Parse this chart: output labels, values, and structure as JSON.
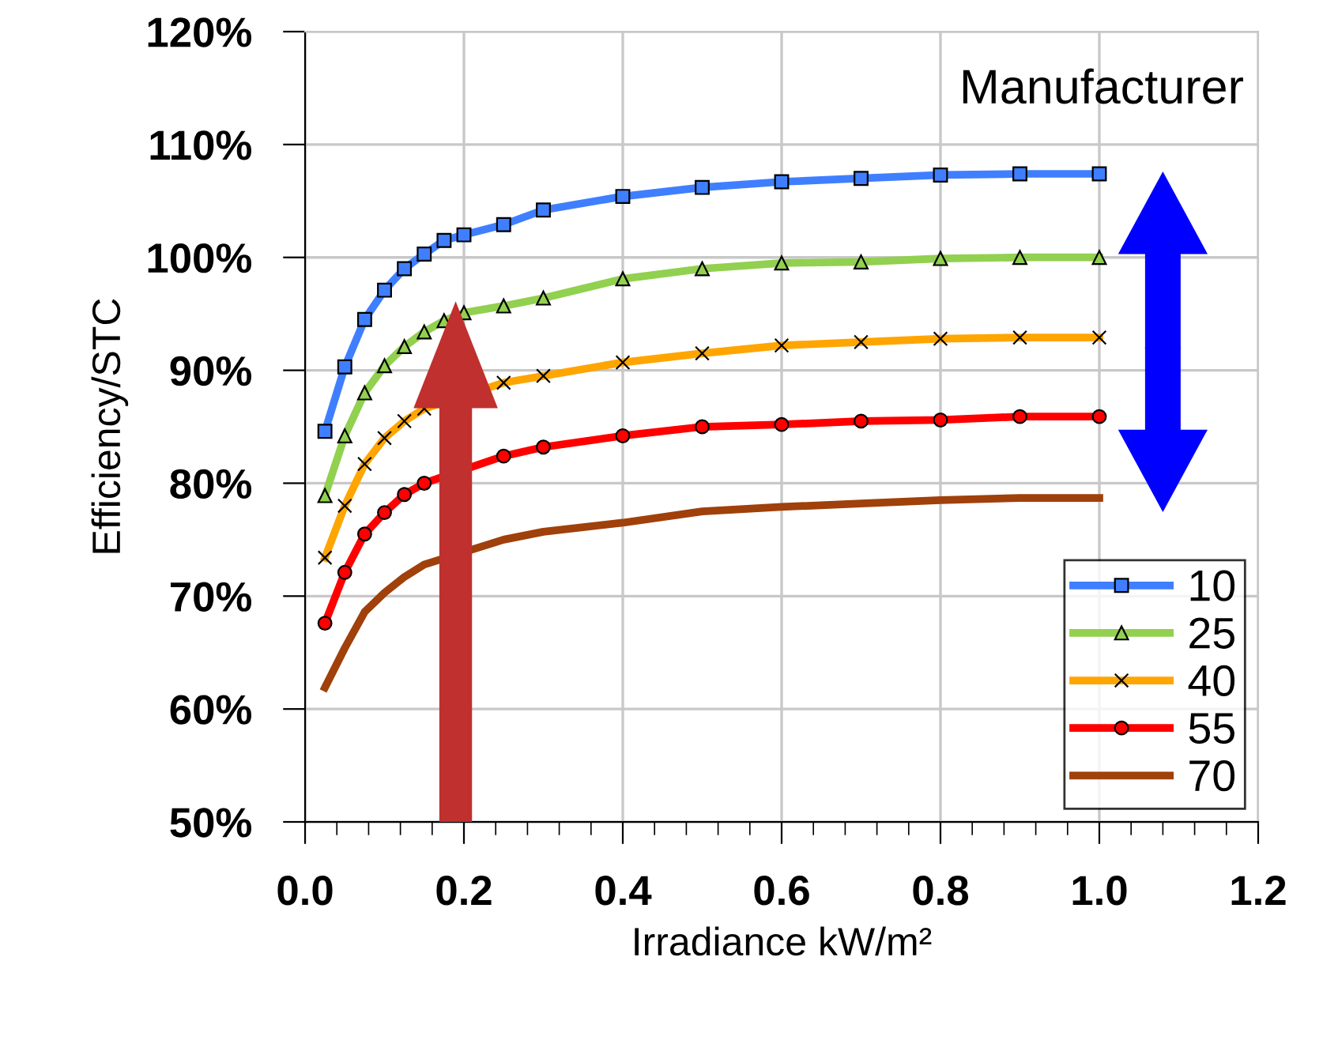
{
  "chart_data": {
    "type": "line",
    "xlabel": "Irradiance kW/m²",
    "ylabel": "Efficiency/STC",
    "x": [
      0.025,
      0.05,
      0.075,
      0.1,
      0.125,
      0.15,
      0.175,
      0.2,
      0.25,
      0.3,
      0.4,
      0.5,
      0.6,
      0.7,
      0.8,
      0.9,
      1.0
    ],
    "series": [
      {
        "name": "10",
        "color": "#3f7fff",
        "marker": "square",
        "values": [
          84.6,
          90.3,
          94.5,
          97.1,
          99.0,
          100.3,
          101.5,
          102.0,
          102.9,
          104.2,
          105.4,
          106.2,
          106.7,
          107.0,
          107.3,
          107.4,
          107.4
        ]
      },
      {
        "name": "25",
        "color": "#92d050",
        "marker": "triangle",
        "values": [
          78.9,
          84.2,
          88.0,
          90.4,
          92.1,
          93.4,
          94.4,
          95.1,
          95.7,
          96.4,
          98.1,
          99.0,
          99.5,
          99.6,
          99.9,
          100.0,
          100.0
        ]
      },
      {
        "name": "40",
        "color": "#ffa500",
        "marker": "cross",
        "x": [
          0.025,
          0.05,
          0.075,
          0.1,
          0.125,
          0.15,
          0.25,
          0.3,
          0.4,
          0.5,
          0.6,
          0.7,
          0.8,
          0.9,
          1.0
        ],
        "values": [
          73.4,
          78.0,
          81.7,
          84.0,
          85.5,
          86.6,
          88.9,
          89.5,
          90.7,
          91.5,
          92.2,
          92.5,
          92.8,
          92.9,
          92.9
        ]
      },
      {
        "name": "55",
        "color": "#ff0000",
        "marker": "circle",
        "x": [
          0.025,
          0.05,
          0.075,
          0.1,
          0.125,
          0.15,
          0.25,
          0.3,
          0.4,
          0.5,
          0.6,
          0.7,
          0.8,
          0.9,
          1.0
        ],
        "values": [
          67.6,
          72.1,
          75.5,
          77.4,
          79.0,
          80.0,
          82.4,
          83.2,
          84.2,
          85.0,
          85.2,
          85.5,
          85.6,
          85.9,
          85.9
        ]
      },
      {
        "name": "70",
        "color": "#a0400a",
        "marker": "none",
        "x": [
          0.025,
          0.05,
          0.075,
          0.1,
          0.125,
          0.15,
          0.25,
          0.3,
          0.4,
          0.5,
          0.6,
          0.7,
          0.8,
          0.9,
          1.0
        ],
        "values": [
          61.9,
          65.4,
          68.6,
          70.3,
          71.7,
          72.8,
          75.0,
          75.7,
          76.5,
          77.5,
          77.9,
          78.2,
          78.5,
          78.7,
          78.7
        ]
      }
    ],
    "xlim": [
      0,
      1.2
    ],
    "xticks": [
      {
        "value": 0,
        "label": "0.0"
      },
      {
        "value": 0.2,
        "label": "0.2"
      },
      {
        "value": 0.4,
        "label": "0.4"
      },
      {
        "value": 0.6,
        "label": "0.6"
      },
      {
        "value": 0.8,
        "label": "0.8"
      },
      {
        "value": 1.0,
        "label": "1.0"
      },
      {
        "value": 1.2,
        "label": "1.2"
      }
    ],
    "ylim": [
      50,
      120
    ],
    "yticks": [
      {
        "value": 50,
        "label": "50%"
      },
      {
        "value": 60,
        "label": "60%"
      },
      {
        "value": 70,
        "label": "70%"
      },
      {
        "value": 80,
        "label": "80%"
      },
      {
        "value": 90,
        "label": "90%"
      },
      {
        "value": 100,
        "label": "100%"
      },
      {
        "value": 110,
        "label": "110%"
      },
      {
        "value": 120,
        "label": "120%"
      }
    ],
    "annotations": [
      "Manufacturer"
    ],
    "grid": true,
    "legend": "bottom right"
  }
}
